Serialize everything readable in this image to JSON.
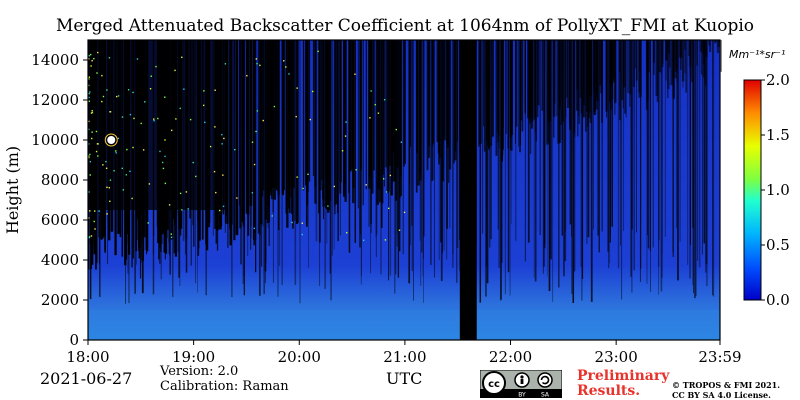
{
  "chart_data": {
    "type": "heatmap",
    "title": "Merged Attenuated Backscatter Coefficient at 1064nm of PollyXT_FMI at Kuopio",
    "xlabel": "UTC",
    "ylabel": "Height (m)",
    "x_ticks": [
      "18:00",
      "19:00",
      "20:00",
      "21:00",
      "22:00",
      "23:00",
      "23:59"
    ],
    "x_range_hours": [
      18.0,
      23.983
    ],
    "y_ticks": [
      0,
      2000,
      4000,
      6000,
      8000,
      10000,
      12000,
      14000
    ],
    "ylim": [
      0,
      15000
    ],
    "colorbar": {
      "label": "Mm⁻¹*sr⁻¹",
      "range": [
        0.0,
        2.0
      ],
      "ticks": [
        "0.0",
        "0.5",
        "1.0",
        "1.5",
        "2.0"
      ],
      "colormap": "jet"
    },
    "data_gap_utc": [
      21.52,
      21.68
    ]
  },
  "footer": {
    "date": "2021-06-27",
    "version": "Version: 2.0",
    "calibration": "Calibration: Raman",
    "utc_label": "UTC",
    "preliminary_1": "Preliminary",
    "preliminary_2": "Results.",
    "copyright_1": "© TROPOS & FMI 2021.",
    "copyright_2": "CC BY SA 4.0 License.",
    "license_badge": {
      "cc": "cc",
      "by": "BY",
      "sa": "SA"
    }
  },
  "colors": {
    "background_signal": "#1c3fd4",
    "near_surface_signal": "#2f7fe0",
    "no_signal": "#000000",
    "preliminary_text": "#e8322c"
  }
}
